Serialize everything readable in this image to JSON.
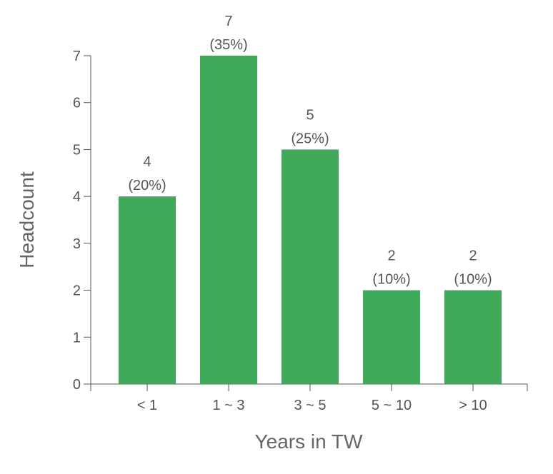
{
  "chart_data": {
    "type": "bar",
    "categories": [
      "< 1",
      "1 ~ 3",
      "3 ~ 5",
      "5 ~ 10",
      "> 10"
    ],
    "values": [
      4,
      7,
      5,
      2,
      2
    ],
    "value_labels": [
      "4",
      "7",
      "5",
      "2",
      "2"
    ],
    "percent_labels": [
      "(20%)",
      "(35%)",
      "(25%)",
      "(10%)",
      "(10%)"
    ],
    "xlabel": "Years in TW",
    "ylabel": "Headcount",
    "ylim": [
      0,
      7
    ],
    "yticks": [
      0,
      1,
      2,
      3,
      4,
      5,
      6,
      7
    ],
    "grid": false,
    "bar_color": "#3faa5a"
  }
}
